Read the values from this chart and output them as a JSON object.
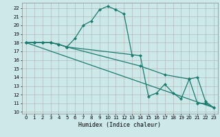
{
  "xlabel": "Humidex (Indice chaleur)",
  "background_color": "#cce8e8",
  "grid_color": "#b0b0b0",
  "line_color": "#1a7a6e",
  "xlim": [
    -0.5,
    23.5
  ],
  "ylim": [
    9.8,
    22.6
  ],
  "xticks": [
    0,
    1,
    2,
    3,
    4,
    5,
    6,
    7,
    8,
    9,
    10,
    11,
    12,
    13,
    14,
    15,
    16,
    17,
    18,
    19,
    20,
    21,
    22,
    23
  ],
  "yticks": [
    10,
    11,
    12,
    13,
    14,
    15,
    16,
    17,
    18,
    19,
    20,
    21,
    22
  ],
  "line1_x": [
    0,
    1,
    2,
    3,
    4,
    5,
    6,
    7,
    8,
    9,
    10,
    11,
    12,
    13
  ],
  "line1_y": [
    18,
    18,
    18,
    18,
    17.8,
    17.5,
    18.5,
    20.0,
    20.5,
    21.8,
    22.2,
    21.8,
    21.3,
    16.5
  ],
  "line2_x": [
    0,
    1,
    2,
    3,
    4,
    5,
    14,
    17,
    20,
    21,
    22,
    23
  ],
  "line2_y": [
    18,
    18,
    18,
    18,
    17.8,
    17.5,
    15.3,
    14.3,
    13.8,
    11.0,
    11.0,
    10.5
  ],
  "line3_x": [
    0,
    1,
    2,
    3,
    4,
    5,
    14,
    15,
    16,
    17,
    18,
    19,
    20,
    21,
    22,
    23
  ],
  "line3_y": [
    18,
    18,
    18,
    18,
    17.8,
    17.5,
    16.5,
    11.8,
    12.2,
    13.2,
    12.2,
    11.5,
    13.8,
    14.0,
    11.2,
    10.5
  ],
  "line4_x": [
    0,
    23
  ],
  "line4_y": [
    18,
    10.5
  ]
}
